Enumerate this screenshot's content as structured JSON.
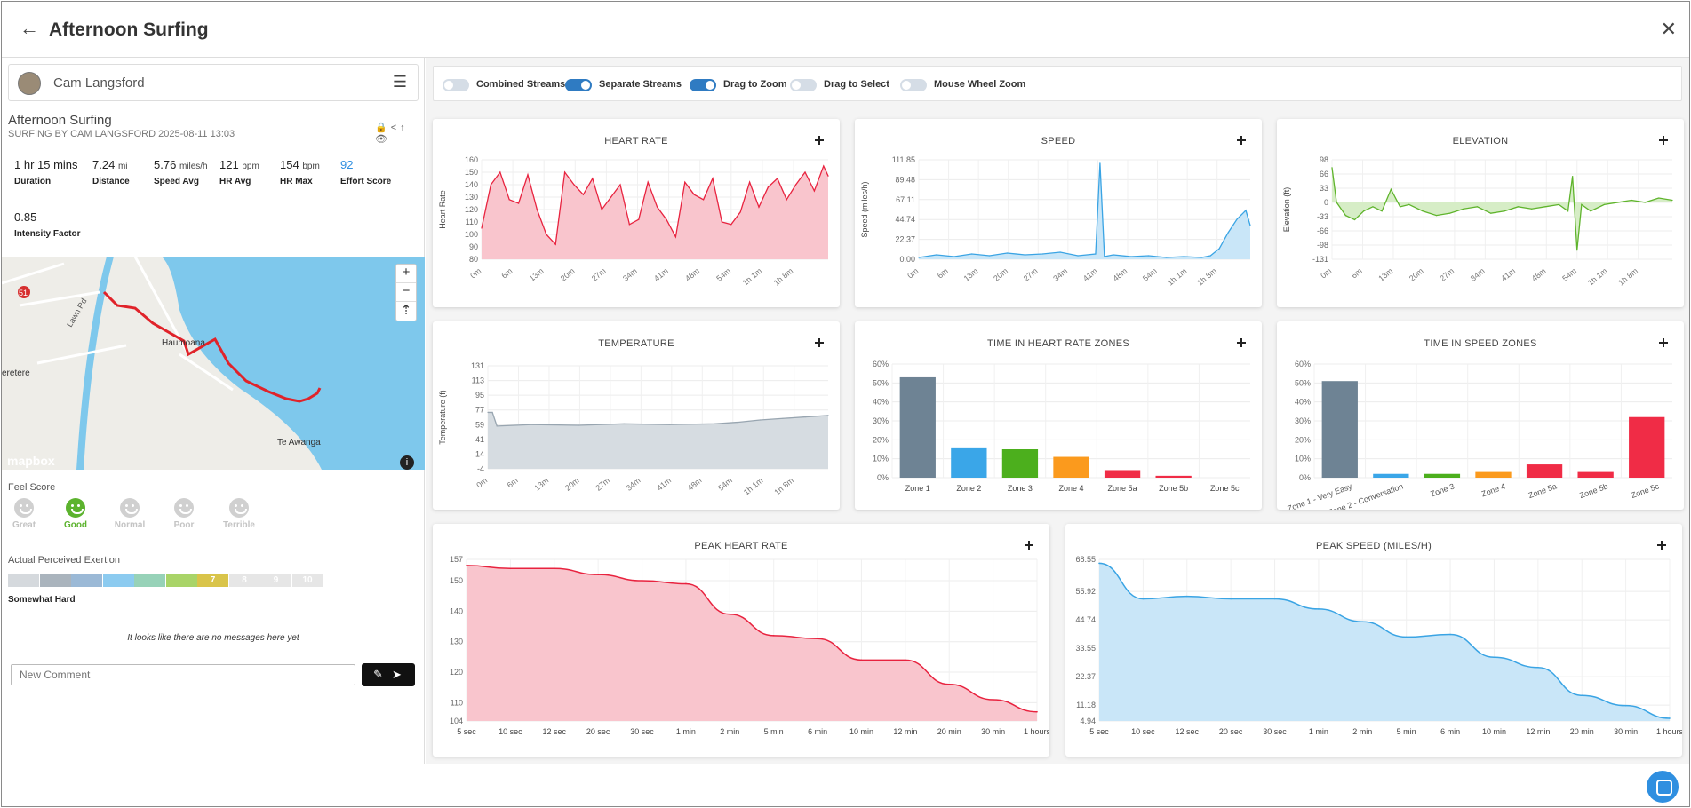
{
  "header": {
    "title": "Afternoon Surfing",
    "back_icon": "←",
    "close_icon": "✕"
  },
  "user": {
    "name": "Cam Langsford",
    "menu_icon": "☰"
  },
  "activity": {
    "title": "Afternoon Surfing",
    "subtitle": "SURFING BY CAM LANGSFORD 2025-08-11 13:03",
    "icons": "🔒<↑👁"
  },
  "stats": [
    {
      "value": "1 hr 15 mins",
      "unit": "",
      "label": "Duration"
    },
    {
      "value": "7.24",
      "unit": "mi",
      "label": "Distance"
    },
    {
      "value": "5.76",
      "unit": "miles/h",
      "label": "Speed Avg"
    },
    {
      "value": "121",
      "unit": "bpm",
      "label": "HR Avg"
    },
    {
      "value": "154",
      "unit": "bpm",
      "label": "HR Max"
    },
    {
      "value": "92",
      "unit": "",
      "label": "Effort Score"
    },
    {
      "value": "0.85",
      "unit": "",
      "label": "Intensity Factor"
    }
  ],
  "map": {
    "labels": [
      "Lawn Rd",
      "Haumoana",
      "eretere",
      "Te Awanga",
      "51",
      "...Rd"
    ],
    "attribution": "mapbox",
    "zoom_in": "+",
    "zoom_out": "−",
    "compass": "⇡",
    "info": "i",
    "colors": {
      "water": "#7ec8ec",
      "land": "#eeede8",
      "route": "#e0232a"
    }
  },
  "feel": {
    "label": "Feel Score",
    "options": [
      "Great",
      "Good",
      "Normal",
      "Poor",
      "Terrible"
    ],
    "selected": "Good"
  },
  "ape": {
    "label": "Actual Perceived Exertion",
    "selected_value": 7,
    "selected_label": "Somewhat Hard",
    "levels": [
      "",
      "",
      "",
      "",
      "",
      "",
      "7",
      "8",
      "9",
      "10"
    ],
    "colors": [
      "#d5d9dd",
      "#aab4bd",
      "#9bb9d6",
      "#8ccbf0",
      "#97d2b8",
      "#a9d468",
      "#d9c44a",
      "#e6e6e6",
      "#e6e6e6",
      "#e6e6e6"
    ]
  },
  "messages": {
    "empty_text": "It looks like there are no messages here yet",
    "comment_placeholder": "New Comment",
    "send_icons": "✎➤"
  },
  "toggles": [
    {
      "label": "Combined Streams",
      "on": false
    },
    {
      "label": "Separate Streams",
      "on": true
    },
    {
      "label": "Drag to Zoom",
      "on": true
    },
    {
      "label": "Drag to Select",
      "on": false
    },
    {
      "label": "Mouse Wheel Zoom",
      "on": false
    }
  ],
  "chart_data": [
    {
      "id": "heart_rate",
      "type": "area",
      "title": "HEART RATE",
      "ylabel": "Heart Rate",
      "ylim": [
        80,
        160
      ],
      "yticks": [
        "160",
        "150",
        "140",
        "130",
        "120",
        "110",
        "100",
        "90",
        "80"
      ],
      "xticks": [
        "0m",
        "6m",
        "13m",
        "20m",
        "27m",
        "34m",
        "41m",
        "48m",
        "54m",
        "1h 1m",
        "1h 8m"
      ],
      "x_minutes": [
        0,
        2,
        4,
        6,
        8,
        10,
        12,
        14,
        16,
        18,
        20,
        22,
        24,
        26,
        28,
        30,
        32,
        34,
        36,
        38,
        40,
        42,
        44,
        46,
        48,
        50,
        52,
        54,
        56,
        58,
        60,
        62,
        64,
        66,
        68,
        70,
        72,
        74,
        75
      ],
      "values": [
        105,
        140,
        150,
        128,
        125,
        148,
        120,
        100,
        92,
        150,
        140,
        132,
        145,
        120,
        130,
        140,
        108,
        112,
        142,
        122,
        112,
        98,
        142,
        132,
        128,
        145,
        110,
        108,
        118,
        142,
        122,
        138,
        145,
        128,
        140,
        150,
        135,
        155,
        147
      ],
      "color": "#e8233f",
      "fill": "#f9c5cd"
    },
    {
      "id": "speed",
      "type": "area",
      "title": "SPEED",
      "ylabel": "Speed (miles/h)",
      "ylim": [
        0,
        111.85
      ],
      "yticks": [
        "111.85",
        "89.48",
        "67.11",
        "44.74",
        "22.37",
        "0.00"
      ],
      "xticks": [
        "0m",
        "6m",
        "13m",
        "20m",
        "27m",
        "34m",
        "41m",
        "48m",
        "54m",
        "1h 1m",
        "1h 8m"
      ],
      "x_minutes": [
        0,
        4,
        8,
        12,
        16,
        20,
        24,
        28,
        32,
        36,
        40,
        41,
        42,
        44,
        48,
        52,
        56,
        60,
        64,
        66,
        68,
        70,
        72,
        74,
        75
      ],
      "values": [
        2,
        5,
        3,
        6,
        4,
        7,
        5,
        6,
        8,
        4,
        6,
        108,
        3,
        5,
        3,
        4,
        2,
        3,
        2,
        4,
        12,
        30,
        45,
        55,
        38
      ],
      "color": "#3aa4e4",
      "fill": "#c9e6f8"
    },
    {
      "id": "elevation",
      "type": "area",
      "title": "ELEVATION",
      "ylabel": "Elevation (ft)",
      "ylim": [
        -131,
        98
      ],
      "yticks": [
        "98",
        "66",
        "33",
        "0",
        "-33",
        "-66",
        "-98",
        "-131"
      ],
      "xticks": [
        "0m",
        "6m",
        "13m",
        "20m",
        "27m",
        "34m",
        "41m",
        "48m",
        "54m",
        "1h 1m",
        "1h 8m"
      ],
      "x_minutes": [
        0,
        1,
        3,
        5,
        7,
        9,
        11,
        13,
        15,
        17,
        20,
        23,
        26,
        29,
        32,
        35,
        38,
        41,
        44,
        47,
        50,
        52,
        53,
        54,
        55,
        57,
        60,
        63,
        66,
        69,
        72,
        75
      ],
      "values": [
        80,
        0,
        -30,
        -40,
        -20,
        -10,
        -20,
        30,
        -10,
        -5,
        -20,
        -30,
        -25,
        -15,
        -10,
        -25,
        -20,
        -10,
        -15,
        -10,
        -5,
        -20,
        60,
        -110,
        -5,
        -20,
        -5,
        0,
        5,
        0,
        10,
        5
      ],
      "color": "#5fb42c",
      "fill": "#d6edc6"
    },
    {
      "id": "temperature",
      "type": "area",
      "title": "TEMPERATURE",
      "ylabel": "Temperature (f)",
      "ylim": [
        -4,
        131
      ],
      "yticks": [
        "131",
        "113",
        "95",
        "77",
        "59",
        "41",
        "14",
        "-4"
      ],
      "xticks": [
        "0m",
        "6m",
        "13m",
        "20m",
        "27m",
        "34m",
        "41m",
        "48m",
        "54m",
        "1h 1m",
        "1h 8m"
      ],
      "x_minutes": [
        0,
        1,
        2,
        10,
        20,
        30,
        40,
        50,
        55,
        60,
        65,
        70,
        75
      ],
      "values": [
        70,
        70,
        52,
        54,
        53,
        55,
        54,
        55,
        57,
        60,
        62,
        64,
        66
      ],
      "color": "#98a5b0",
      "fill": "#d6dce1"
    },
    {
      "id": "hr_zones",
      "type": "bar",
      "title": "TIME IN HEART RATE ZONES",
      "yticks": [
        "60%",
        "50%",
        "40%",
        "30%",
        "20%",
        "10%",
        "0%"
      ],
      "ylim": [
        0,
        60
      ],
      "categories": [
        "Zone 1",
        "Zone 2",
        "Zone 3",
        "Zone 4",
        "Zone 5a",
        "Zone 5b",
        "Zone 5c"
      ],
      "values": [
        53,
        16,
        15,
        11,
        4,
        1,
        0
      ],
      "colors": [
        "#6e8394",
        "#3aa6e8",
        "#4caf1d",
        "#fb9a1d",
        "#f02c46",
        "#f02c46",
        "#f02c46"
      ]
    },
    {
      "id": "speed_zones",
      "type": "bar",
      "title": "TIME IN SPEED ZONES",
      "yticks": [
        "60%",
        "50%",
        "40%",
        "30%",
        "20%",
        "10%",
        "0%"
      ],
      "ylim": [
        0,
        60
      ],
      "categories": [
        "Zone 1 - Very Easy",
        "Zone 2 - Conversation",
        "Zone 3",
        "Zone 4",
        "Zone 5a",
        "Zone 5b",
        "Zone 5c"
      ],
      "values": [
        51,
        2,
        2,
        3,
        7,
        3,
        32
      ],
      "colors": [
        "#6e8394",
        "#3aa6e8",
        "#4caf1d",
        "#fb9a1d",
        "#f02c46",
        "#f02c46",
        "#f02c46"
      ]
    },
    {
      "id": "peak_hr",
      "type": "area",
      "title": "PEAK HEART RATE",
      "ylim": [
        104,
        157
      ],
      "yticks": [
        "157",
        "150",
        "140",
        "130",
        "120",
        "110",
        "104"
      ],
      "categories": [
        "5 sec",
        "10 sec",
        "12 sec",
        "20 sec",
        "30 sec",
        "1 min",
        "2 min",
        "5 min",
        "6 min",
        "10 min",
        "12 min",
        "20 min",
        "30 min",
        "1 hours"
      ],
      "values": [
        155,
        154,
        154,
        152,
        150,
        149,
        139,
        132,
        131,
        124,
        124,
        116,
        111,
        107
      ],
      "color": "#e8233f",
      "fill": "#f9c5cd"
    },
    {
      "id": "peak_speed",
      "type": "area",
      "title": "PEAK SPEED (MILES/H)",
      "ylim": [
        4.94,
        68.55
      ],
      "yticks": [
        "68.55",
        "55.92",
        "44.74",
        "33.55",
        "22.37",
        "11.18",
        "4.94"
      ],
      "categories": [
        "5 sec",
        "10 sec",
        "12 sec",
        "20 sec",
        "30 sec",
        "1 min",
        "2 min",
        "5 min",
        "6 min",
        "10 min",
        "12 min",
        "20 min",
        "30 min",
        "1 hours"
      ],
      "values": [
        67,
        53,
        54,
        53,
        53,
        49,
        44,
        38,
        39,
        30,
        26,
        15,
        11,
        6
      ],
      "color": "#3aa4e4",
      "fill": "#c9e6f8"
    }
  ]
}
